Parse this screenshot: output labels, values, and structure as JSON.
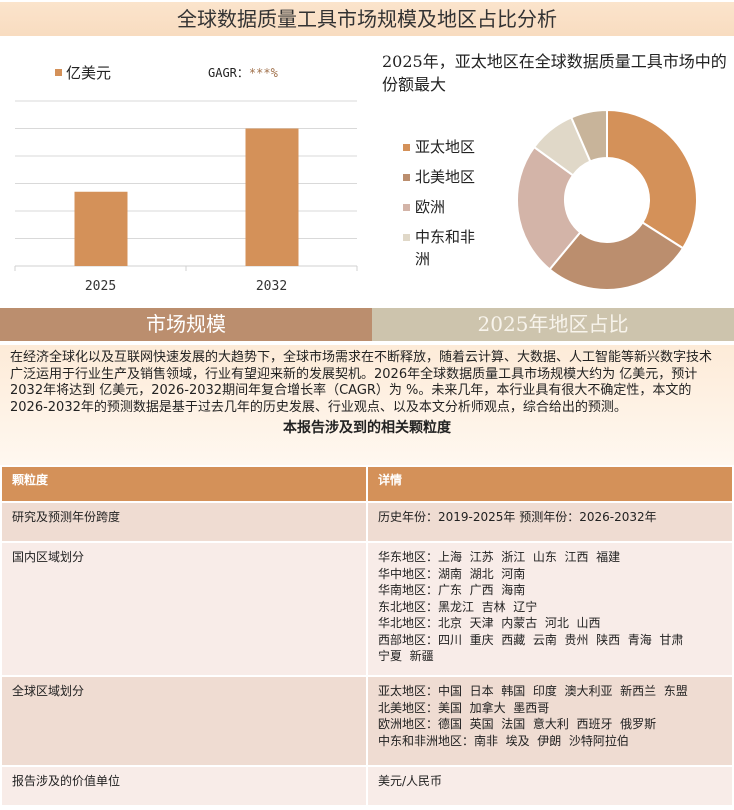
{
  "title": "全球数据质量工具市场规模及地区占比分析",
  "bar_legend": {
    "label": "亿美元",
    "color": "#d49159"
  },
  "cagr": {
    "label": "GAGR：",
    "value": "***%"
  },
  "pie_title": "2025年，亚太地区在全球数据质量工具市场中的份额最大",
  "chart_data": [
    {
      "type": "bar",
      "categories": [
        "2025",
        "2032"
      ],
      "values": [
        2.7,
        5.0
      ],
      "series_name": "亿美元",
      "grid": true,
      "ylim": [
        0,
        6
      ],
      "color": "#d49159"
    },
    {
      "type": "pie",
      "donut": true,
      "labels": [
        "亚太地区",
        "北美地区",
        "欧洲",
        "中东和非洲",
        ""
      ],
      "values": [
        34,
        27,
        24,
        8.5,
        6.5
      ],
      "colors": [
        "#d49159",
        "#bb8e6e",
        "#d3b4a8",
        "#e0d8c8",
        "#c8b49a"
      ],
      "legend": "left"
    }
  ],
  "tabs": {
    "market": "市场规模",
    "share": "2025年地区占比"
  },
  "paragraph": "在经济全球化以及互联网快速发展的大趋势下，全球市场需求在不断释放，随着云计算、大数据、人工智能等新兴数字技术广泛运用于行业生产及销售领域，行业有望迎来新的发展契机。2026年全球数据质量工具市场规模大约为 亿美元，预计2032年将达到 亿美元，2026-2032期间年复合增长率（CAGR）为 %。未来几年，本行业具有很大不确定性，本文的2026-2032年的预测数据是基于过去几年的历史发展、行业观点、以及本文分析师观点，综合给出的预测。",
  "table_title": "本报告涉及到的相关颗粒度",
  "table": {
    "headers": [
      "颗粒度",
      "详情"
    ],
    "rows": [
      {
        "k": "研究及预测年份跨度",
        "v": [
          "历史年份：2019-2025年 预测年份：2026-2032年"
        ]
      },
      {
        "k": "国内区域划分",
        "v": [
          "华东地区：上海  江苏  浙江  山东  江西  福建",
          "华中地区：湖南  湖北  河南",
          "华南地区：广东  广西  海南",
          "东北地区：黑龙江  吉林  辽宁",
          "华北地区：北京  天津  内蒙古  河北  山西",
          "西部地区：四川  重庆  西藏  云南  贵州  陕西  青海  甘肃",
          "宁夏  新疆"
        ]
      },
      {
        "k": "全球区域划分",
        "v": [
          "亚太地区：中国  日本  韩国  印度  澳大利亚  新西兰  东盟",
          "北美地区：美国  加拿大  墨西哥",
          "欧洲地区：德国  英国  法国  意大利  西班牙  俄罗斯",
          "中东和非洲地区：南非  埃及  伊朗  沙特阿拉伯"
        ]
      },
      {
        "k": "报告涉及的价值单位",
        "v": [
          "美元/人民币"
        ]
      }
    ]
  }
}
